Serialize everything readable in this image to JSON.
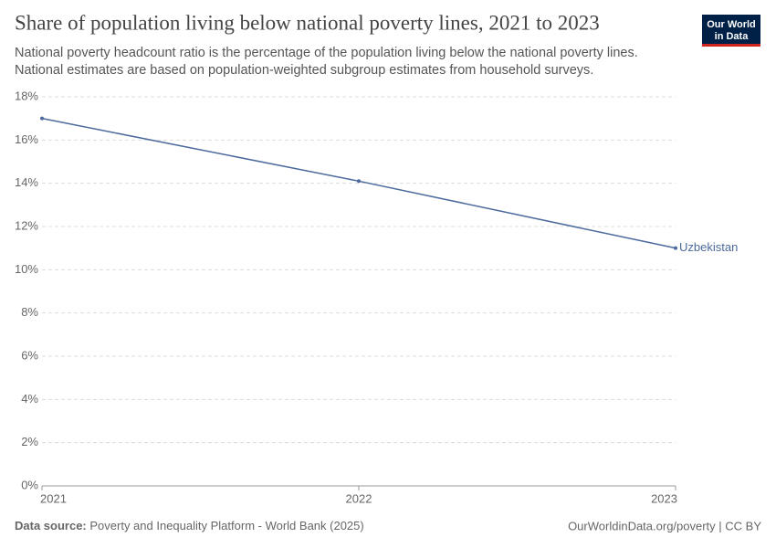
{
  "chart_data": {
    "type": "line",
    "title": "Share of population living below national poverty lines, 2021 to 2023",
    "subtitle": [
      "National poverty headcount ratio is the percentage of the population living below the national poverty lines.",
      "National estimates are based on population-weighted subgroup estimates from household surveys."
    ],
    "logo": [
      "Our World",
      "in Data"
    ],
    "x": [
      2021,
      2022,
      2023
    ],
    "series": [
      {
        "name": "Uzbekistan",
        "color": "#4c6a9c",
        "values": [
          17,
          14.1,
          11
        ]
      }
    ],
    "xlim": [
      2021,
      2023
    ],
    "xticks": [
      2021,
      2022,
      2023
    ],
    "ylim": [
      0,
      18
    ],
    "yticks": [
      {
        "value": 0,
        "label": "0%"
      },
      {
        "value": 2,
        "label": "2%"
      },
      {
        "value": 4,
        "label": "4%"
      },
      {
        "value": 6,
        "label": "6%"
      },
      {
        "value": 8,
        "label": "8%"
      },
      {
        "value": 10,
        "label": "10%"
      },
      {
        "value": 12,
        "label": "12%"
      },
      {
        "value": 14,
        "label": "14%"
      },
      {
        "value": 16,
        "label": "16%"
      },
      {
        "value": 18,
        "label": "18%"
      }
    ],
    "grid": true,
    "source_label": "Data source:",
    "source": "Poverty and Inequality Platform - World Bank (2025)",
    "footer_right": "OurWorldinData.org/poverty | CC BY"
  }
}
